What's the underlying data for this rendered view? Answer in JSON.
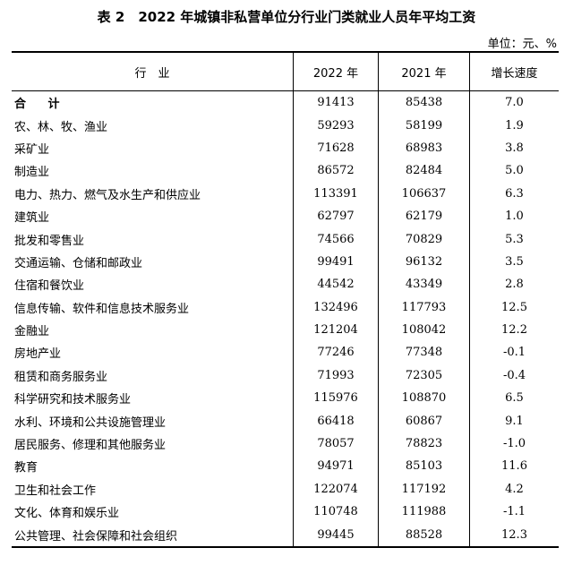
{
  "title": "表 2　2022 年城镇非私营单位分行业门类就业人员年平均工资",
  "unit": "单位：元、%",
  "headers": [
    "行　业",
    "2022 年",
    "2021 年",
    "增长速度"
  ],
  "rows": [
    [
      "合 计",
      "91413",
      "85438",
      "7.0"
    ],
    [
      "农、林、牧、渔业",
      "59293",
      "58199",
      "1.9"
    ],
    [
      "采矿业",
      "71628",
      "68983",
      "3.8"
    ],
    [
      "制造业",
      "86572",
      "82484",
      "5.0"
    ],
    [
      "电力、热力、燃气及水生产和供应业",
      "113391",
      "106637",
      "6.3"
    ],
    [
      "建筑业",
      "62797",
      "62179",
      "1.0"
    ],
    [
      "批发和零售业",
      "74566",
      "70829",
      "5.3"
    ],
    [
      "交通运输、仓储和邮政业",
      "99491",
      "96132",
      "3.5"
    ],
    [
      "住宿和餐饮业",
      "44542",
      "43349",
      "2.8"
    ],
    [
      "信息传输、软件和信息技术服务业",
      "132496",
      "117793",
      "12.5"
    ],
    [
      "金融业",
      "121204",
      "108042",
      "12.2"
    ],
    [
      "房地产业",
      "77246",
      "77348",
      "-0.1"
    ],
    [
      "租赁和商务服务业",
      "71993",
      "72305",
      "-0.4"
    ],
    [
      "科学研究和技术服务业",
      "115976",
      "108870",
      "6.5"
    ],
    [
      "水利、环境和公共设施管理业",
      "66418",
      "60867",
      "9.1"
    ],
    [
      "居民服务、修理和其他服务业",
      "78057",
      "78823",
      "-1.0"
    ],
    [
      "教育",
      "94971",
      "85103",
      "11.6"
    ],
    [
      "卫生和社会工作",
      "122074",
      "117192",
      "4.2"
    ],
    [
      "文化、体育和娱乐业",
      "110748",
      "111988",
      "-1.1"
    ],
    [
      "公共管理、社会保障和社会组织",
      "99445",
      "88528",
      "12.3"
    ]
  ]
}
